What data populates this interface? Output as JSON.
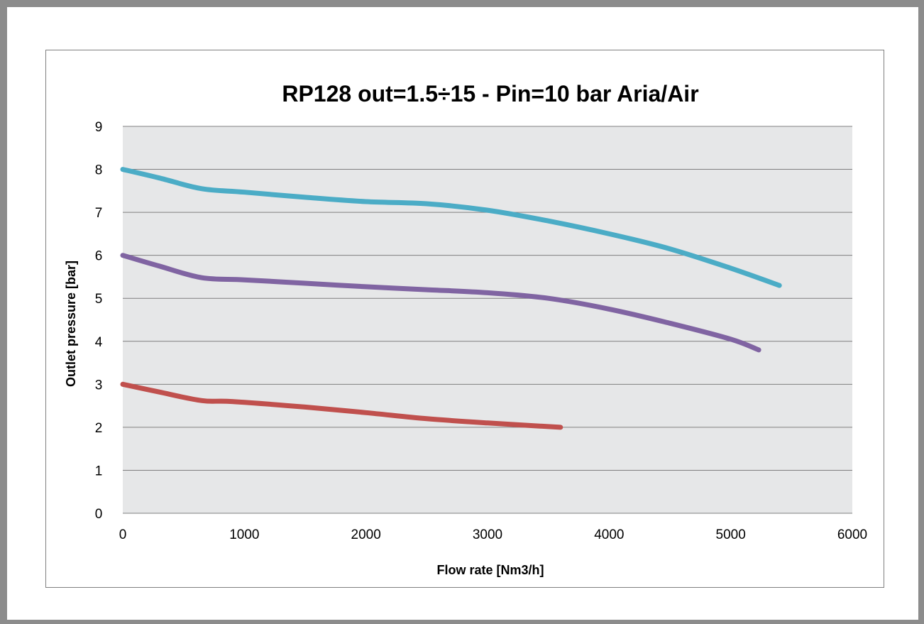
{
  "colors": {
    "plot_background": "#e6e7e8",
    "gridline": "#7f7f7f",
    "series": [
      "#4bacc6",
      "#8064a2",
      "#c0504d"
    ]
  },
  "chart_data": {
    "type": "line",
    "title": "RP128 out=1.5÷15 - Pin=10 bar  Aria/Air",
    "xlabel": "Flow rate [Nm3/h]",
    "ylabel": "Outlet pressure [bar]",
    "xlim": [
      0,
      6000
    ],
    "ylim": [
      0,
      9
    ],
    "xticks": [
      0,
      1000,
      2000,
      3000,
      4000,
      5000,
      6000
    ],
    "yticks": [
      0,
      1,
      2,
      3,
      4,
      5,
      6,
      7,
      8,
      9
    ],
    "grid": "horizontal",
    "legend": "none",
    "series": [
      {
        "color": "#4bacc6",
        "points": [
          [
            0,
            8.0
          ],
          [
            300,
            7.8
          ],
          [
            650,
            7.55
          ],
          [
            1000,
            7.47
          ],
          [
            1500,
            7.35
          ],
          [
            2000,
            7.25
          ],
          [
            2500,
            7.2
          ],
          [
            3000,
            7.05
          ],
          [
            3500,
            6.8
          ],
          [
            4000,
            6.5
          ],
          [
            4500,
            6.15
          ],
          [
            5000,
            5.7
          ],
          [
            5400,
            5.3
          ]
        ]
      },
      {
        "color": "#8064a2",
        "points": [
          [
            0,
            6.0
          ],
          [
            300,
            5.75
          ],
          [
            650,
            5.48
          ],
          [
            1000,
            5.43
          ],
          [
            1500,
            5.35
          ],
          [
            2000,
            5.27
          ],
          [
            2500,
            5.2
          ],
          [
            3000,
            5.13
          ],
          [
            3500,
            5.0
          ],
          [
            4000,
            4.75
          ],
          [
            4500,
            4.42
          ],
          [
            5000,
            4.05
          ],
          [
            5230,
            3.8
          ]
        ]
      },
      {
        "color": "#c0504d",
        "points": [
          [
            0,
            3.0
          ],
          [
            300,
            2.82
          ],
          [
            650,
            2.62
          ],
          [
            900,
            2.6
          ],
          [
            1500,
            2.47
          ],
          [
            2000,
            2.34
          ],
          [
            2500,
            2.2
          ],
          [
            3000,
            2.1
          ],
          [
            3600,
            2.0
          ]
        ]
      }
    ]
  }
}
